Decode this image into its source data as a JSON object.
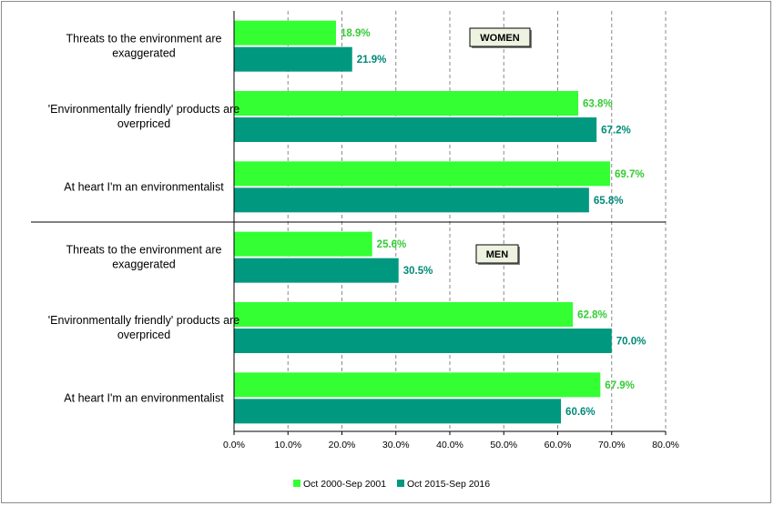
{
  "chart_data": {
    "type": "bar",
    "orientation": "horizontal",
    "xlim": [
      0,
      80
    ],
    "x_ticks": [
      "0.0%",
      "10.0%",
      "20.0%",
      "30.0%",
      "40.0%",
      "50.0%",
      "60.0%",
      "70.0%",
      "80.0%"
    ],
    "grid": true,
    "series": [
      {
        "name": "Oct 2000-Sep 2001",
        "color": "#33ff33",
        "label_color": "#33cc33"
      },
      {
        "name": "Oct 2015-Sep 2016",
        "color": "#009980",
        "label_color": "#008a78"
      }
    ],
    "legend_position": "bottom",
    "panels": [
      {
        "title": "WOMEN",
        "categories": [
          {
            "label": [
              "Threats to the environment are",
              "exaggerated"
            ],
            "values": [
              18.9,
              21.9
            ],
            "value_labels": [
              "18.9%",
              "21.9%"
            ]
          },
          {
            "label": [
              "'Environmentally friendly' products are",
              "overpriced"
            ],
            "values": [
              63.8,
              67.2
            ],
            "value_labels": [
              "63.8%",
              "67.2%"
            ]
          },
          {
            "label": [
              "At heart I'm an environmentalist"
            ],
            "values": [
              69.7,
              65.8
            ],
            "value_labels": [
              "69.7%",
              "65.8%"
            ]
          }
        ]
      },
      {
        "title": "MEN",
        "categories": [
          {
            "label": [
              "Threats to the environment are",
              "exaggerated"
            ],
            "values": [
              25.6,
              30.5
            ],
            "value_labels": [
              "25.6%",
              "30.5%"
            ]
          },
          {
            "label": [
              "'Environmentally friendly' products are",
              "overpriced"
            ],
            "values": [
              62.8,
              70.0
            ],
            "value_labels": [
              "62.8%",
              "70.0%"
            ]
          },
          {
            "label": [
              "At heart I'm an environmentalist"
            ],
            "values": [
              67.9,
              60.6
            ],
            "value_labels": [
              "67.9%",
              "60.6%"
            ]
          }
        ]
      }
    ]
  }
}
